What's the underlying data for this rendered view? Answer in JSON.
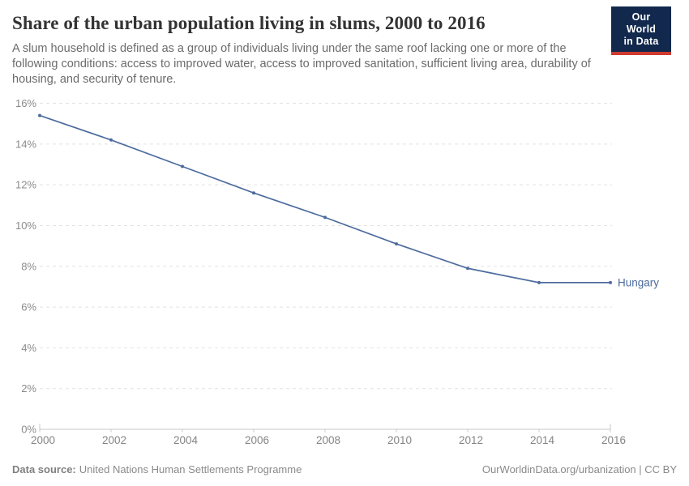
{
  "header": {
    "title": "Share of the urban population living in slums, 2000 to 2016",
    "subtitle": "A slum household is defined as a group of individuals living under the same roof lacking one or more of the following conditions: access to improved water, access to improved sanitation, sufficient living area, durability of housing, and security of tenure."
  },
  "logo": {
    "line1": "Our World",
    "line2": "in Data",
    "bg_color": "#12294d",
    "stripe_color": "#cf3a31"
  },
  "chart_data": {
    "type": "line",
    "title": "Share of the urban population living in slums, 2000 to 2016",
    "x": [
      2000,
      2002,
      2004,
      2006,
      2008,
      2010,
      2012,
      2014,
      2016
    ],
    "series": [
      {
        "name": "Hungary",
        "values": [
          15.4,
          14.2,
          12.9,
          11.6,
          10.4,
          9.1,
          7.9,
          7.2,
          7.2
        ],
        "color": "#4d6b9e"
      }
    ],
    "end_label": "Hungary",
    "xlabel": "",
    "ylabel": "",
    "xlim": [
      2000,
      2016
    ],
    "ylim": [
      0,
      16
    ],
    "xticks": [
      2000,
      2002,
      2004,
      2006,
      2008,
      2010,
      2012,
      2014,
      2016
    ],
    "yticks": [
      0,
      2,
      4,
      6,
      8,
      10,
      12,
      14,
      16
    ],
    "ytick_suffix": "%",
    "grid": "horizontal-dashed",
    "legend_position": "end-of-line"
  },
  "footer": {
    "datasource_label": "Data source:",
    "datasource_value": "United Nations Human Settlements Programme",
    "credit": "OurWorldinData.org/urbanization | CC BY"
  },
  "colors": {
    "line": "#4d6b9e",
    "title_text": "#333333",
    "subtitle_text": "#6b6b6b",
    "axis_text": "#8b8b8b",
    "gridline": "#e2e2e2",
    "axis_line": "#c8c8c8",
    "footer_text": "#8a8a8a"
  }
}
